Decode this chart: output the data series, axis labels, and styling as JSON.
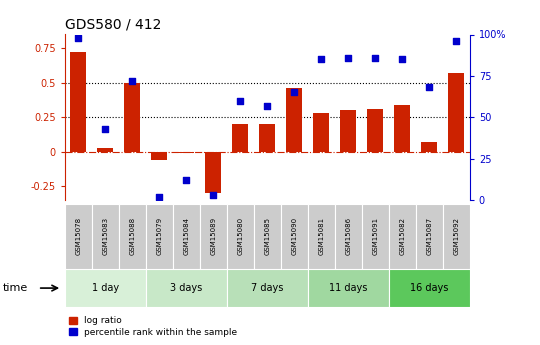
{
  "title": "GDS580 / 412",
  "samples": [
    "GSM15078",
    "GSM15083",
    "GSM15088",
    "GSM15079",
    "GSM15084",
    "GSM15089",
    "GSM15080",
    "GSM15085",
    "GSM15090",
    "GSM15081",
    "GSM15086",
    "GSM15091",
    "GSM15082",
    "GSM15087",
    "GSM15092"
  ],
  "log_ratio": [
    0.72,
    0.03,
    0.5,
    -0.06,
    -0.01,
    -0.3,
    0.2,
    0.2,
    0.46,
    0.28,
    0.3,
    0.31,
    0.34,
    0.07,
    0.57
  ],
  "pct_rank": [
    0.98,
    0.43,
    0.72,
    0.02,
    0.12,
    0.03,
    0.6,
    0.57,
    0.65,
    0.85,
    0.86,
    0.86,
    0.85,
    0.68,
    0.96
  ],
  "groups": [
    {
      "label": "1 day",
      "start": 0,
      "end": 2,
      "color": "#d8f0d8"
    },
    {
      "label": "3 days",
      "start": 3,
      "end": 5,
      "color": "#c8e8c8"
    },
    {
      "label": "7 days",
      "start": 6,
      "end": 8,
      "color": "#b8e0b8"
    },
    {
      "label": "11 days",
      "start": 9,
      "end": 11,
      "color": "#a0d8a0"
    },
    {
      "label": "16 days",
      "start": 12,
      "end": 14,
      "color": "#5cc85c"
    }
  ],
  "bar_color": "#cc2200",
  "dot_color": "#0000cc",
  "ylim_left": [
    -0.35,
    0.85
  ],
  "ylim_right": [
    0,
    100
  ],
  "yticks_left": [
    -0.25,
    0,
    0.25,
    0.5,
    0.75
  ],
  "yticks_right": [
    0,
    25,
    50,
    75,
    100
  ],
  "hlines": [
    0.25,
    0.5
  ],
  "zero_line": 0.0,
  "left_axis_color": "#cc2200",
  "right_axis_color": "#0000cc",
  "legend_bar_label": "log ratio",
  "legend_dot_label": "percentile rank within the sample",
  "time_label": "time"
}
